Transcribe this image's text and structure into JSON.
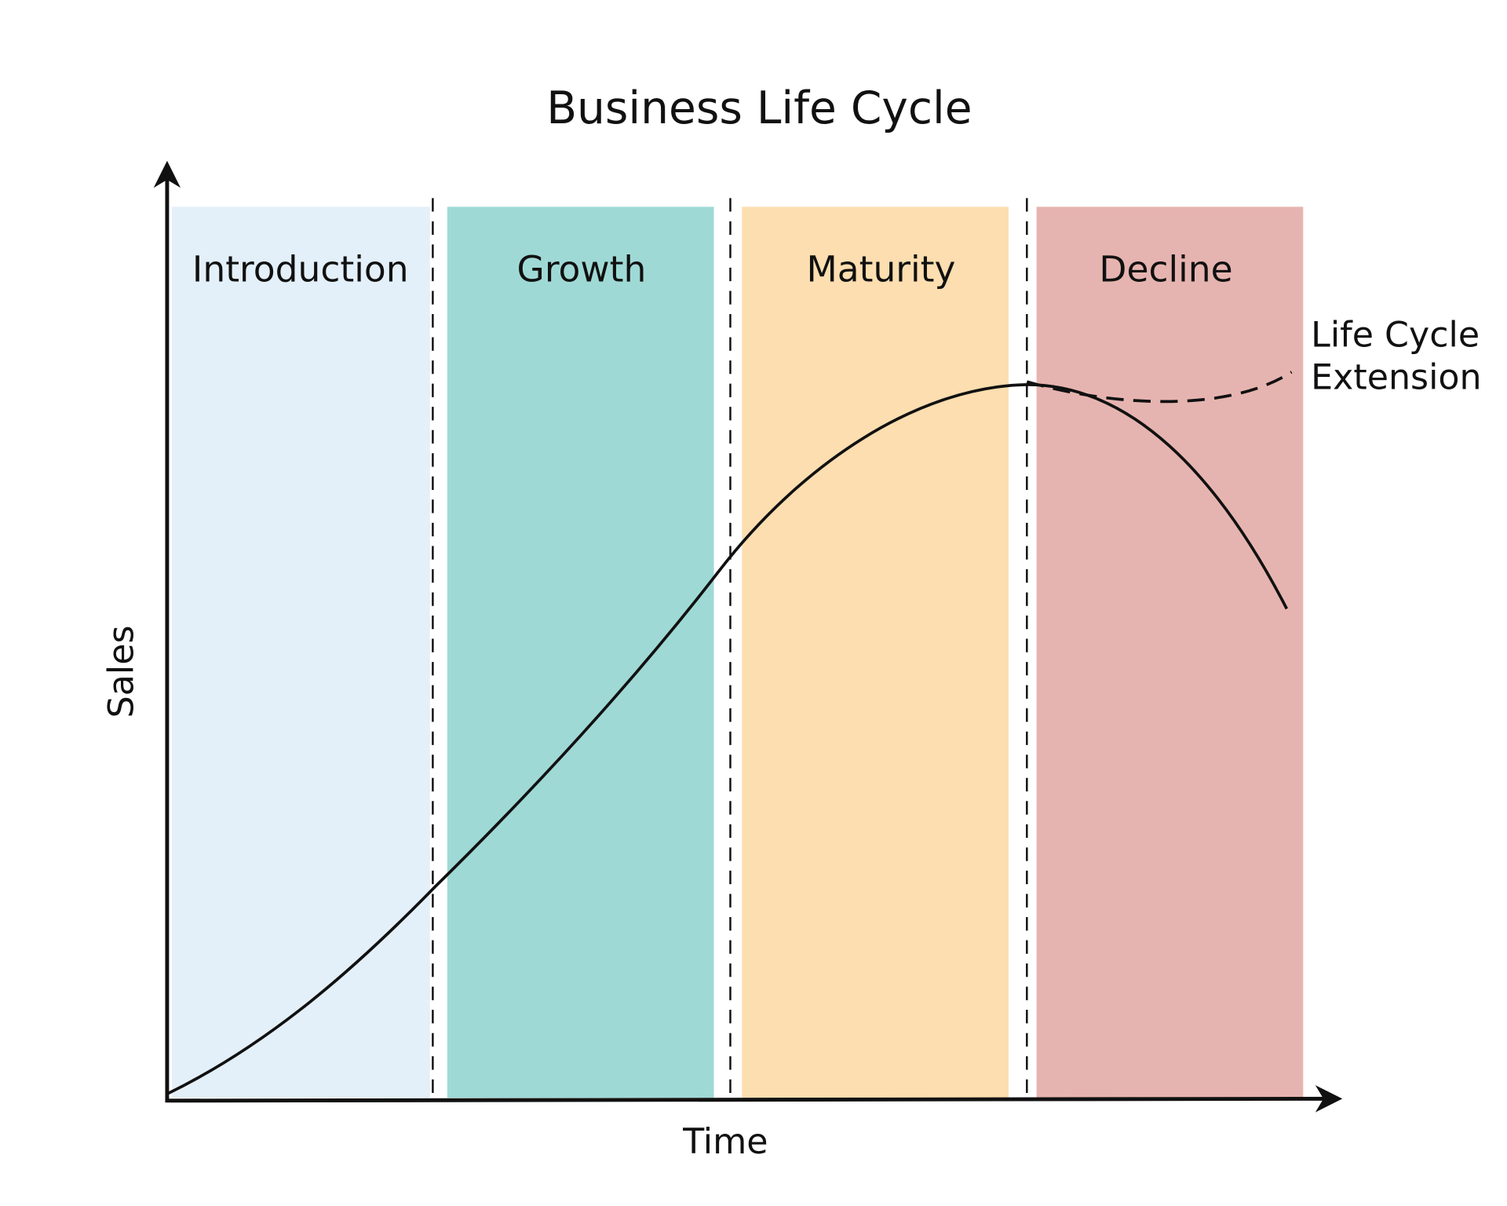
{
  "title": "Business Life Cycle",
  "axes": {
    "y_label": "Sales",
    "x_label": "Time"
  },
  "stages": [
    {
      "label": "Introduction"
    },
    {
      "label": "Growth"
    },
    {
      "label": "Maturity"
    },
    {
      "label": "Decline"
    }
  ],
  "annotation": {
    "lines": [
      "Life Cycle",
      "Extension"
    ]
  }
}
